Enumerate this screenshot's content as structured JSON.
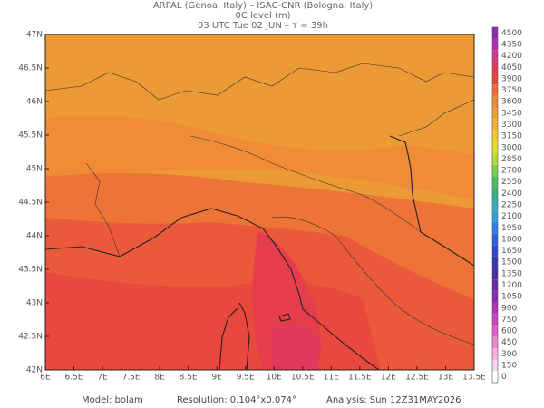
{
  "header": {
    "line1": "ARPAL (Genoa, Italy)  –  ISAC-CNR (Bologna, Italy)",
    "line2": "0C level (m)",
    "line3": "03 UTC Tue 02 JUN  –  τ = 39h"
  },
  "map": {
    "lon_labels": [
      "6E",
      "6.5E",
      "7E",
      "7.5E",
      "8E",
      "8.5E",
      "9E",
      "9.5E",
      "10E",
      "10.5E",
      "11E",
      "11.5E",
      "12E",
      "12.5E",
      "13E",
      "13.5E"
    ],
    "lat_labels": [
      "47N",
      "46.5N",
      "46N",
      "45.5N",
      "45N",
      "44.5N",
      "44N",
      "43.5N",
      "43N",
      "42.5N",
      "42N"
    ]
  },
  "colorbar": {
    "labels": [
      4500,
      4350,
      4200,
      4050,
      3900,
      3750,
      3600,
      3450,
      3300,
      3150,
      3000,
      2850,
      2700,
      2550,
      2400,
      2250,
      2100,
      1950,
      1800,
      1650,
      1500,
      1350,
      1200,
      1050,
      900,
      750,
      600,
      450,
      300,
      150,
      0
    ]
  },
  "footer": {
    "model": "Model: bolam",
    "resolution": "Resolution: 0.104°x0.074°",
    "analysis": "Analysis: Sun 12Z31MAY2026"
  }
}
